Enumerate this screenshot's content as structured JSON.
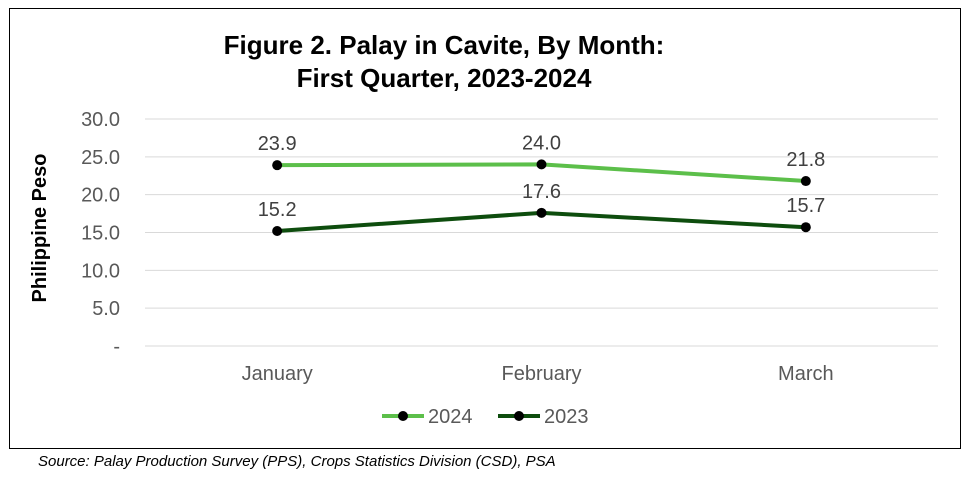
{
  "chart_data": {
    "type": "line",
    "title_line1": "Figure 2. Palay in Cavite, By Month:",
    "title_line2": "First Quarter, 2023-2024",
    "ylabel": "Philippine Peso",
    "xlabel": "",
    "categories": [
      "January",
      "February",
      "March"
    ],
    "ylim": [
      0,
      30
    ],
    "yticks": [
      {
        "value": 30,
        "label": "30.0"
      },
      {
        "value": 25,
        "label": "25.0"
      },
      {
        "value": 20,
        "label": "20.0"
      },
      {
        "value": 15,
        "label": "15.0"
      },
      {
        "value": 10,
        "label": "10.0"
      },
      {
        "value": 5,
        "label": "5.0"
      },
      {
        "value": 0,
        "label": "-"
      }
    ],
    "grid": true,
    "legend_position": "bottom",
    "series": [
      {
        "name": "2024",
        "color": "#5cbf4a",
        "values": [
          23.9,
          24.0,
          21.8
        ],
        "labels": [
          "23.9",
          "24.0",
          "21.8"
        ]
      },
      {
        "name": "2023",
        "color": "#0e4d0e",
        "values": [
          15.2,
          17.6,
          15.7
        ],
        "labels": [
          "15.2",
          "17.6",
          "15.7"
        ]
      }
    ]
  },
  "source_note": "Source: Palay Production Survey (PPS), Crops Statistics Division (CSD), PSA"
}
